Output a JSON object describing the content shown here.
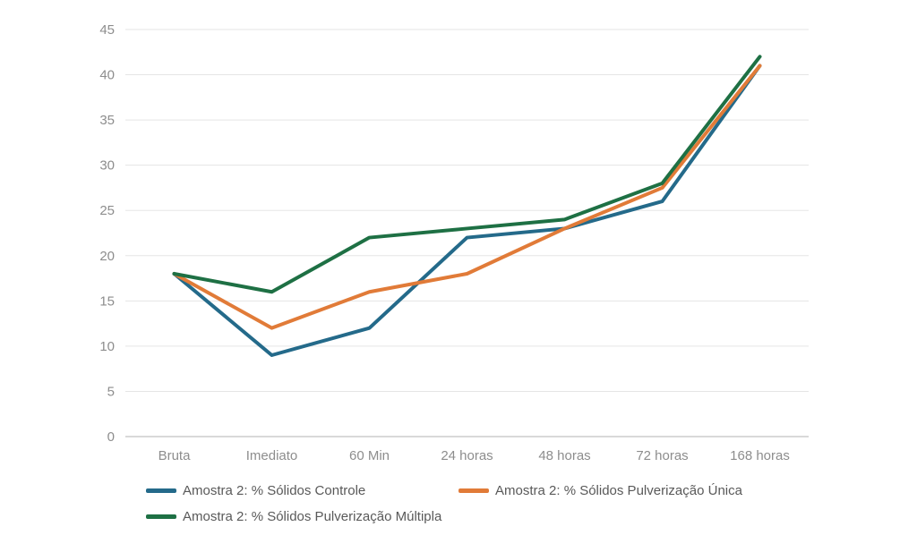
{
  "chart_data": {
    "type": "line",
    "title": "",
    "xlabel": "",
    "ylabel": "",
    "categories": [
      "Bruta",
      "Imediato",
      "60 Min",
      "24 horas",
      "48 horas",
      "72 horas",
      "168 horas"
    ],
    "series": [
      {
        "name": "Amostra 2: % Sólidos Controle",
        "color": "#246a8a",
        "values": [
          18,
          9,
          12,
          22,
          23,
          26,
          41
        ]
      },
      {
        "name": "Amostra 2: % Sólidos Pulverização Única",
        "color": "#e17b38",
        "values": [
          18,
          12,
          16,
          18,
          23,
          27.5,
          41
        ]
      },
      {
        "name": "Amostra 2: % Sólidos Pulverização Múltipla",
        "color": "#1e7044",
        "values": [
          18,
          16,
          22,
          23,
          24,
          28,
          42
        ]
      }
    ],
    "ylim": [
      0,
      45
    ],
    "ytick_step": 5,
    "ytick_labels": [
      "0",
      "5",
      "10",
      "15",
      "20",
      "25",
      "30",
      "35",
      "40",
      "45"
    ],
    "grid": true,
    "legend_position": "bottom"
  },
  "colors": {
    "background": "#ffffff",
    "gridline": "#e5e5e5",
    "axis_line": "#d9d9d9",
    "tick_label": "#8d8d8d",
    "legend_text": "#595959"
  }
}
